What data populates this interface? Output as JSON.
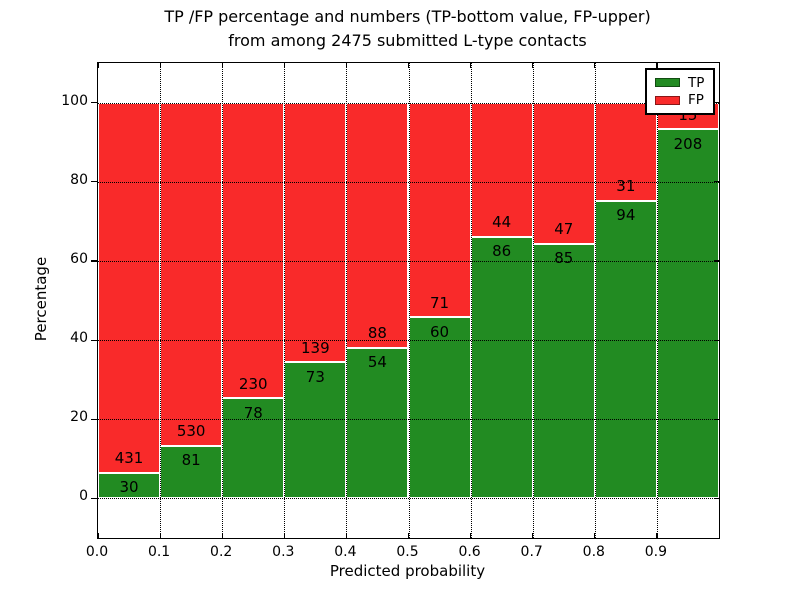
{
  "title": {
    "line1": "TP /FP percentage and numbers (TP-bottom value, FP-upper)",
    "line2": "from among 2475 submitted L-type contacts"
  },
  "colors": {
    "tp": "#228B22",
    "fp": "#F92A2A",
    "background": "#ffffff",
    "grid": "#000000",
    "bar_edge": "#ffffff",
    "text": "#000000"
  },
  "chart_data": {
    "type": "bar",
    "stacked": true,
    "normalized": "each bar scaled to 100 percent, counts shown as labels",
    "title": "TP /FP percentage and numbers (TP-bottom value, FP-upper) from among 2475 submitted L-type contacts",
    "total_contacts": 2475,
    "xlabel": "Predicted probability",
    "ylabel": "Percentage",
    "bin_width": 0.1,
    "bin_starts": [
      0.0,
      0.1,
      0.2,
      0.3,
      0.4,
      0.5,
      0.6,
      0.7,
      0.8,
      0.9
    ],
    "x_tick_labels": [
      "0.0",
      "0.1",
      "0.2",
      "0.3",
      "0.4",
      "0.5",
      "0.6",
      "0.7",
      "0.8",
      "0.9"
    ],
    "y_tick_values": [
      0,
      20,
      40,
      60,
      80,
      100
    ],
    "y_tick_labels": [
      "0",
      "20",
      "40",
      "60",
      "80",
      "100"
    ],
    "xlim": [
      0.0,
      1.0
    ],
    "ylim": [
      -10,
      110
    ],
    "grid": {
      "style": "dotted",
      "color": "#000000",
      "x": true,
      "y": true
    },
    "legend": {
      "position": "upper right",
      "entries": [
        {
          "label": "TP",
          "color": "#228B22"
        },
        {
          "label": "FP",
          "color": "#F92A2A"
        }
      ]
    },
    "series": [
      {
        "name": "TP",
        "color": "#228B22",
        "values": [
          30,
          81,
          78,
          73,
          54,
          60,
          86,
          85,
          94,
          208
        ]
      },
      {
        "name": "FP",
        "color": "#F92A2A",
        "values": [
          431,
          530,
          230,
          139,
          88,
          71,
          44,
          47,
          31,
          15
        ]
      }
    ],
    "tp_percent_of_bar": [
      6.51,
      13.26,
      25.32,
      34.43,
      38.03,
      45.8,
      66.15,
      64.39,
      75.2,
      93.27
    ]
  }
}
